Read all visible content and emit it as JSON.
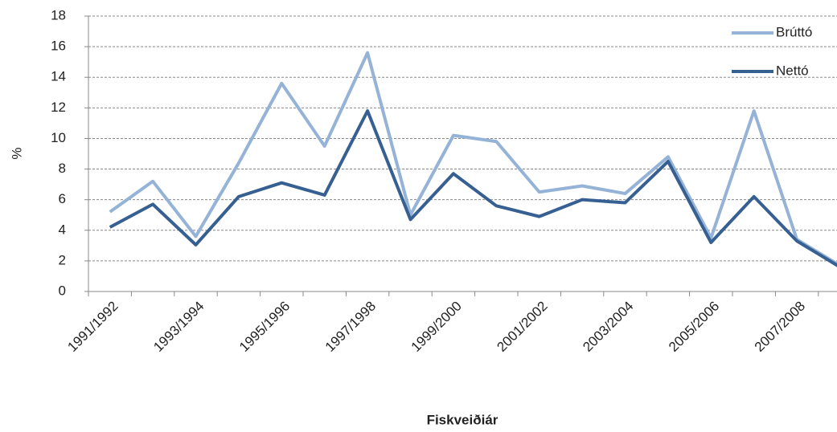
{
  "chart_data": {
    "type": "line",
    "x_label": "Fiskveiðiár",
    "y_label": "%",
    "categories": [
      "1991/1992",
      null,
      "1993/1994",
      null,
      "1995/1996",
      null,
      "1997/1998",
      null,
      "1999/2000",
      null,
      "2001/2002",
      null,
      "2003/2004",
      null,
      "2005/2006",
      null,
      "2007/2008",
      null
    ],
    "series": [
      {
        "name": "Brúttó",
        "color": "#95b3d7",
        "values": [
          5.2,
          7.2,
          3.6,
          8.4,
          13.6,
          9.5,
          15.6,
          5.0,
          10.2,
          9.8,
          6.5,
          6.9,
          6.4,
          8.8,
          3.5,
          11.8,
          3.4,
          1.7
        ]
      },
      {
        "name": "Nettó",
        "color": "#376092",
        "values": [
          4.2,
          5.7,
          3.05,
          6.2,
          7.1,
          6.3,
          11.8,
          4.7,
          7.7,
          5.6,
          4.9,
          6.0,
          5.8,
          8.5,
          3.2,
          6.2,
          3.3,
          1.6
        ]
      }
    ],
    "ylim": [
      0,
      18
    ],
    "yticks": [
      0,
      2,
      4,
      6,
      8,
      10,
      12,
      14,
      16,
      18
    ],
    "grid": true,
    "legend": "top-right"
  }
}
